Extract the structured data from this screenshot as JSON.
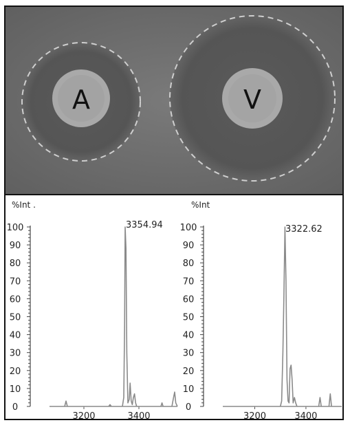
{
  "plate": {
    "well_labels": [
      "A",
      "V"
    ],
    "background_color": "#6e6e6e",
    "zone_color": "#565656",
    "well_color": "#a9a9a9"
  },
  "chart_data": [
    {
      "type": "line",
      "ylabel": "%Int .",
      "ylim": [
        0,
        100
      ],
      "yticks": [
        0,
        10,
        20,
        30,
        40,
        50,
        60,
        70,
        80,
        90,
        100
      ],
      "xlim": [
        3075,
        3540
      ],
      "xticks": [
        3200,
        3400
      ],
      "peak_label": "3354.94",
      "series": [
        {
          "x": [
            3075,
            3130,
            3135,
            3140,
            3200,
            3290,
            3295,
            3300,
            3340,
            3345,
            3348,
            3350,
            3353,
            3356,
            3360,
            3365,
            3368,
            3372,
            3376,
            3380,
            3384,
            3388,
            3392,
            3400,
            3480,
            3484,
            3488,
            3520,
            3526,
            3530,
            3534,
            3540
          ],
          "y": [
            0,
            0,
            3,
            0,
            0,
            0,
            1,
            0,
            0,
            5,
            45,
            100,
            88,
            30,
            2,
            4,
            13,
            3,
            1,
            5,
            7,
            2,
            0,
            0,
            0,
            2,
            0,
            0,
            5,
            8,
            2,
            0
          ]
        }
      ]
    },
    {
      "type": "line",
      "ylabel": "%Int",
      "ylim": [
        0,
        100
      ],
      "yticks": [
        0,
        10,
        20,
        30,
        40,
        50,
        60,
        70,
        80,
        90,
        100
      ],
      "xlim": [
        3075,
        3540
      ],
      "xticks": [
        3200,
        3400
      ],
      "peak_label": "3322.62",
      "series": [
        {
          "x": [
            3075,
            3250,
            3300,
            3305,
            3310,
            3314,
            3318,
            3322,
            3326,
            3330,
            3334,
            3338,
            3342,
            3346,
            3350,
            3355,
            3360,
            3365,
            3370,
            3450,
            3455,
            3460,
            3490,
            3495,
            3500,
            3540
          ],
          "y": [
            0,
            0,
            0,
            3,
            30,
            62,
            100,
            70,
            15,
            3,
            2,
            21,
            23,
            15,
            2,
            5,
            2,
            0,
            0,
            0,
            5,
            0,
            0,
            7,
            0,
            0
          ]
        }
      ]
    }
  ]
}
